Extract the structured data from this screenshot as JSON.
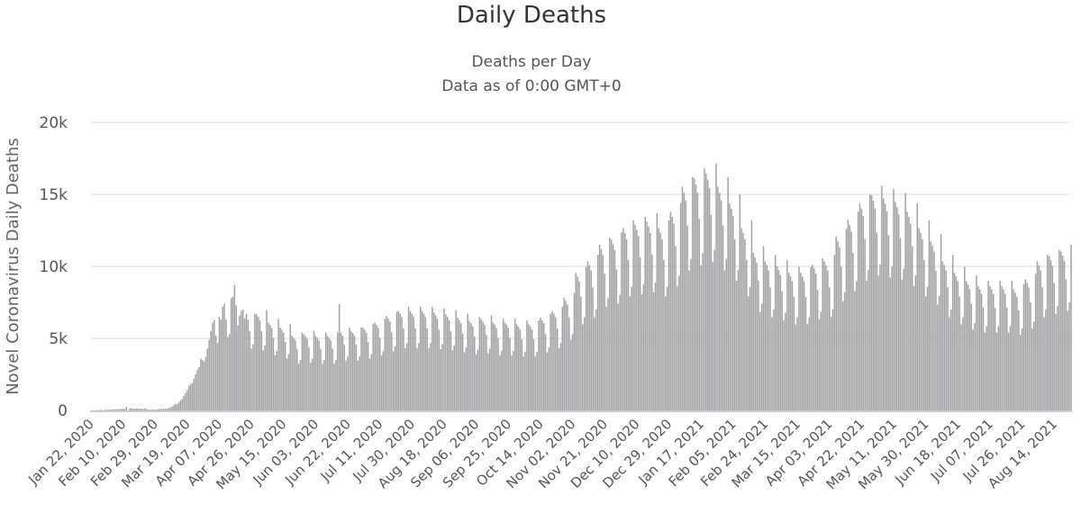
{
  "chart_data": {
    "type": "bar",
    "title": "Daily Deaths",
    "subtitle": "Deaths per Day",
    "subtitle2": "Data as of 0:00 GMT+0",
    "ylabel": "Novel Coronavirus Daily Deaths",
    "xlabel": "",
    "ylim": [
      0,
      20000
    ],
    "yticks": [
      {
        "v": 0,
        "label": "0"
      },
      {
        "v": 5000,
        "label": "5k"
      },
      {
        "v": 10000,
        "label": "10k"
      },
      {
        "v": 15000,
        "label": "15k"
      },
      {
        "v": 20000,
        "label": "20k"
      }
    ],
    "x_range": [
      "Jan 22, 2020",
      "Aug 24, 2021"
    ],
    "xtick_labels": [
      "Jan 22, 2020",
      "Feb 10, 2020",
      "Feb 29, 2020",
      "Mar 19, 2020",
      "Apr 07, 2020",
      "Apr 26, 2020",
      "May 15, 2020",
      "Jun 03, 2020",
      "Jun 22, 2020",
      "Jul 11, 2020",
      "Jul 30, 2020",
      "Aug 18, 2020",
      "Sep 06, 2020",
      "Sep 25, 2020",
      "Oct 14, 2020",
      "Nov 02, 2020",
      "Nov 21, 2020",
      "Dec 10, 2020",
      "Dec 29, 2020",
      "Jan 17, 2021",
      "Feb 05, 2021",
      "Feb 24, 2021",
      "Mar 15, 2021",
      "Apr 03, 2021",
      "Apr 22, 2021",
      "May 11, 2021",
      "May 30, 2021",
      "Jun 18, 2021",
      "Jul 07, 2021",
      "Jul 26, 2021",
      "Aug 14, 2021"
    ],
    "grid": true,
    "legend": "none",
    "bar_color": "#a0a0a3",
    "grid_color": "#dcdcdc",
    "values": [
      17,
      1,
      8,
      16,
      14,
      26,
      49,
      2,
      38,
      42,
      46,
      45,
      57,
      64,
      66,
      73,
      86,
      89,
      97,
      108,
      97,
      254,
      13,
      143,
      142,
      106,
      98,
      136,
      115,
      118,
      109,
      97,
      150,
      71,
      64,
      37,
      58,
      64,
      37,
      68,
      75,
      112,
      100,
      113,
      105,
      105,
      160,
      210,
      260,
      350,
      440,
      420,
      550,
      700,
      800,
      1000,
      1200,
      1400,
      1700,
      1800,
      1900,
      2200,
      2500,
      2800,
      3000,
      3600,
      3500,
      3400,
      3700,
      4300,
      4900,
      5500,
      6100,
      6300,
      5200,
      4700,
      6500,
      6300,
      7200,
      7400,
      6300,
      5100,
      5300,
      7800,
      7900,
      8700,
      7300,
      5900,
      6600,
      6900,
      7000,
      6400,
      6700,
      6300,
      5500,
      4300,
      4600,
      6700,
      6670,
      6500,
      6260,
      5510,
      4180,
      4520,
      6960,
      6100,
      5940,
      5720,
      5040,
      3820,
      4130,
      6360,
      5750,
      5600,
      5400,
      4750,
      3600,
      3900,
      6000,
      5180,
      5040,
      4860,
      4280,
      3240,
      3510,
      5400,
      5290,
      5150,
      4970,
      4370,
      3310,
      3590,
      5520,
      5180,
      5040,
      4860,
      4280,
      3240,
      3510,
      5400,
      5180,
      5040,
      4860,
      4280,
      3240,
      3510,
      5400,
      7400,
      5380,
      5180,
      4560,
      3460,
      3740,
      5760,
      5520,
      5380,
      5180,
      4560,
      3460,
      3740,
      5760,
      5750,
      5600,
      5400,
      4750,
      3600,
      3900,
      6000,
      6100,
      5940,
      5720,
      5040,
      3820,
      4130,
      6360,
      6560,
      6380,
      6160,
      5420,
      4100,
      4450,
      6840,
      6900,
      6720,
      6480,
      5700,
      4320,
      4680,
      7200,
      6900,
      6720,
      6480,
      5700,
      4320,
      4680,
      7200,
      6900,
      6720,
      6480,
      5700,
      4320,
      4680,
      7200,
      6790,
      6610,
      6370,
      5610,
      4250,
      4600,
      7080,
      6670,
      6500,
      6260,
      5510,
      4180,
      4520,
      6960,
      6440,
      6270,
      6050,
      5320,
      4030,
      4370,
      6720,
      6210,
      6050,
      5830,
      5130,
      3890,
      4210,
      6480,
      6330,
      6160,
      5940,
      5230,
      3960,
      4290,
      6600,
      6100,
      5940,
      5720,
      5040,
      3820,
      4130,
      6360,
      6100,
      5940,
      5720,
      5040,
      3820,
      4130,
      6360,
      5980,
      5820,
      5620,
      4940,
      3740,
      4060,
      6240,
      5980,
      5820,
      5620,
      4940,
      3740,
      4060,
      6240,
      6440,
      6270,
      6050,
      5320,
      4030,
      4370,
      6720,
      6900,
      6720,
      6480,
      5700,
      4320,
      4680,
      7200,
      7820,
      7620,
      7340,
      6460,
      4900,
      5300,
      8160,
      9550,
      9300,
      8960,
      7890,
      5980,
      6470,
      9960,
      10350,
      10080,
      9720,
      8550,
      6480,
      7020,
      10800,
      11500,
      11200,
      10800,
      9500,
      7200,
      7800,
      12000,
      11850,
      11540,
      11120,
      9790,
      7420,
      8030,
      12360,
      12650,
      12320,
      11880,
      10450,
      7920,
      8580,
      13200,
      12880,
      12540,
      12100,
      10640,
      8060,
      8740,
      13440,
      13110,
      12770,
      12310,
      10830,
      8210,
      8890,
      13680,
      12650,
      12320,
      11880,
      10450,
      7920,
      8580,
      13200,
      13800,
      13440,
      12960,
      11400,
      8640,
      9360,
      14400,
      15530,
      15120,
      14580,
      12830,
      9720,
      10530,
      16200,
      16100,
      15680,
      15120,
      13300,
      10080,
      10920,
      16800,
      16450,
      16020,
      15440,
      13590,
      10300,
      11150,
      17160,
      15530,
      15120,
      14580,
      12830,
      9720,
      10530,
      16200,
      14380,
      14000,
      13500,
      11880,
      9000,
      9750,
      15000,
      12650,
      12320,
      11880,
      10450,
      7920,
      8580,
      13200,
      10930,
      10640,
      10260,
      9030,
      6840,
      7410,
      11400,
      10350,
      10080,
      9720,
      8550,
      6480,
      7020,
      10800,
      10010,
      9740,
      9400,
      8270,
      6260,
      6790,
      10440,
      9550,
      9300,
      8960,
      7890,
      5980,
      6470,
      9960,
      9550,
      9300,
      8960,
      7890,
      5980,
      6470,
      9960,
      10120,
      9860,
      9500,
      8360,
      6340,
      6860,
      10560,
      10350,
      10080,
      9720,
      8550,
      6480,
      7020,
      10800,
      12080,
      11760,
      11340,
      9980,
      7560,
      8190,
      12600,
      13230,
      12880,
      12420,
      10930,
      8280,
      8970,
      13800,
      14380,
      14000,
      13500,
      11880,
      9000,
      9750,
      15000,
      14950,
      14560,
      14040,
      12350,
      9360,
      10140,
      15600,
      14720,
      14340,
      13820,
      12160,
      9220,
      9980,
      15360,
      14490,
      14110,
      13610,
      11970,
      9070,
      9830,
      15120,
      13800,
      13440,
      12960,
      11400,
      8640,
      9360,
      14400,
      12650,
      12320,
      11880,
      10450,
      7920,
      8580,
      13200,
      11730,
      11420,
      11020,
      9690,
      7340,
      7960,
      12240,
      10350,
      10080,
      9720,
      8550,
      6480,
      7020,
      10800,
      9550,
      9300,
      8960,
      7890,
      5980,
      6470,
      9960,
      8970,
      8740,
      8420,
      7410,
      5620,
      6080,
      9360,
      8630,
      8400,
      8100,
      7130,
      5400,
      5850,
      9000,
      8630,
      8400,
      8100,
      7130,
      5400,
      5850,
      9000,
      8630,
      8400,
      8100,
      7130,
      5400,
      5850,
      9000,
      8400,
      8180,
      7880,
      6940,
      5260,
      5690,
      8760,
      9090,
      8850,
      8530,
      7510,
      5690,
      6160,
      9480,
      10350,
      10080,
      9720,
      8550,
      6480,
      7020,
      10800,
      10700,
      10420,
      10040,
      8840,
      6700,
      7250,
      11160,
      11040,
      10750,
      10370,
      9120,
      6910,
      7490,
      11520
    ]
  }
}
